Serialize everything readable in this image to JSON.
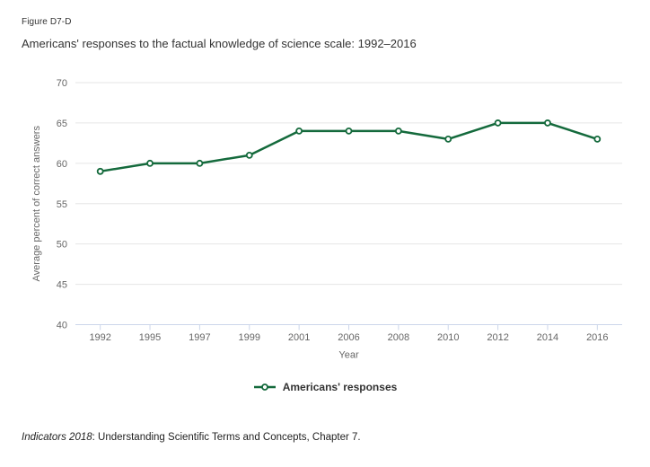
{
  "header": {
    "figure_label": "Figure D7-D",
    "title": "Americans' responses to the factual knowledge of science scale: 1992–2016"
  },
  "chart_data": {
    "type": "line",
    "title": "Americans' responses to the factual knowledge of science scale: 1992–2016",
    "categories": [
      "1992",
      "1995",
      "1997",
      "1999",
      "2001",
      "2006",
      "2008",
      "2010",
      "2012",
      "2014",
      "2016"
    ],
    "series": [
      {
        "name": "Americans' responses",
        "values": [
          59,
          60,
          60,
          61,
          64,
          64,
          64,
          63,
          65,
          65,
          63
        ],
        "color": "#146a3c"
      }
    ],
    "xlabel": "Year",
    "ylabel": "Average percent of correct answers",
    "ylim": [
      40,
      70
    ],
    "yticks": [
      40,
      45,
      50,
      55,
      60,
      65,
      70
    ],
    "grid": "horizontal-only",
    "legend_position": "bottom-center",
    "colors": {
      "grid": "#e6e6e6",
      "axis_line": "#ccd6eb",
      "axis_text": "#666666"
    }
  },
  "legend": {
    "label": "Americans' responses"
  },
  "footer": {
    "source_italic": "Indicators 2018",
    "source_rest": ": Understanding Scientific Terms and Concepts, Chapter 7."
  }
}
